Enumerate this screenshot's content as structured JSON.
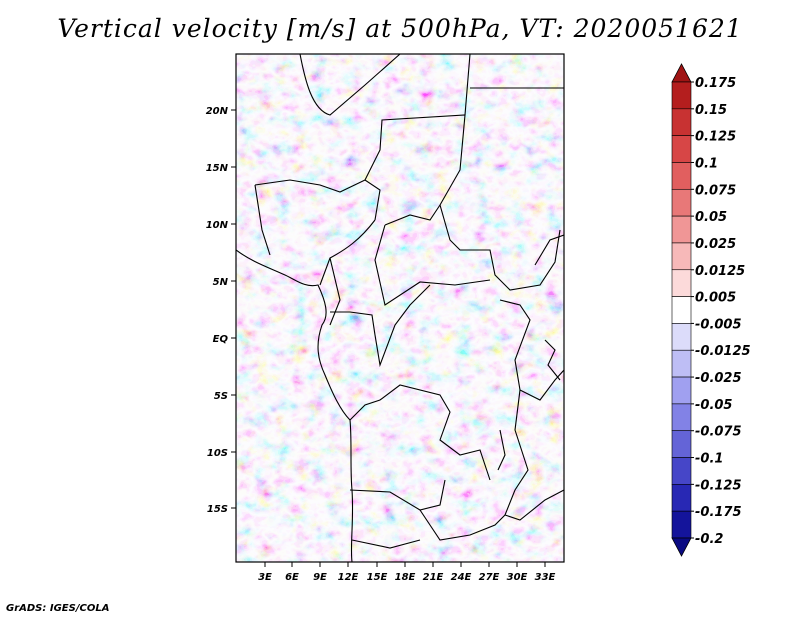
{
  "title": "Vertical velocity [m/s] at 500hPa, VT: 2020051621",
  "footer": "GrADS: IGES/COLA",
  "map": {
    "lat_labels": [
      "20N",
      "15N",
      "10N",
      "5N",
      "EQ",
      "5S",
      "10S",
      "15S"
    ],
    "lon_labels": [
      "3E",
      "6E",
      "9E",
      "12E",
      "15E",
      "18E",
      "21E",
      "24E",
      "27E",
      "30E",
      "33E"
    ]
  },
  "colorbar": {
    "levels": [
      "0.175",
      "0.15",
      "0.125",
      "0.1",
      "0.075",
      "0.05",
      "0.025",
      "0.0125",
      "0.005",
      "-0.005",
      "-0.0125",
      "-0.025",
      "-0.05",
      "-0.075",
      "-0.1",
      "-0.125",
      "-0.175",
      "-0.2"
    ],
    "colors": [
      "#a01414",
      "#b41e1e",
      "#c83232",
      "#d74646",
      "#e15f5f",
      "#e87878",
      "#f09696",
      "#f7b9b9",
      "#fcdada",
      "#ffffff",
      "#dcdcfa",
      "#bebef5",
      "#a0a0f0",
      "#8282e6",
      "#6464d7",
      "#4646c8",
      "#2828b4",
      "#14149b",
      "#0a0a82"
    ]
  }
}
